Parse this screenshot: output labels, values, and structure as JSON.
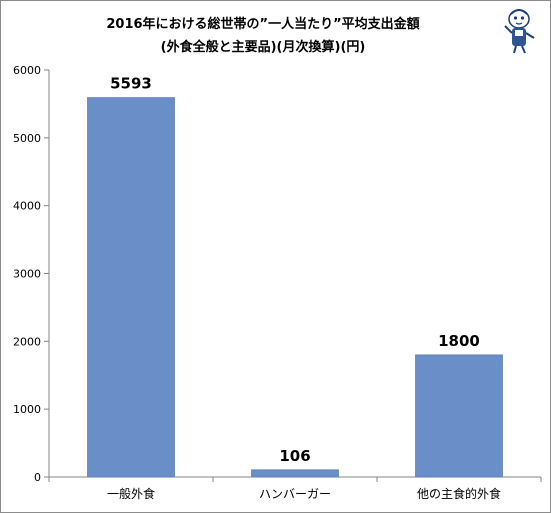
{
  "chart_data": {
    "type": "bar",
    "title": "2016年における総世帯の”一人当たり”平均支出金額",
    "subtitle": "(外食全般と主要品)(月次換算)(円)",
    "categories": [
      "一般外食",
      "ハンバーガー",
      "他の主食的外食"
    ],
    "values": [
      5593,
      106,
      1800
    ],
    "data_labels": [
      "5593",
      "106",
      "1800"
    ],
    "xlabel": "",
    "ylabel": "",
    "ylim": [
      0,
      6000
    ],
    "yticks": [
      0,
      1000,
      2000,
      3000,
      4000,
      5000,
      6000
    ],
    "grid": false,
    "legend": "none",
    "colors": {
      "bar": "#6a8fc8",
      "bar_stroke": "#5a7db5",
      "axis": "#868686",
      "frame": "#8c8c8c"
    }
  },
  "logo": {
    "icon": "mascot-character-icon"
  }
}
